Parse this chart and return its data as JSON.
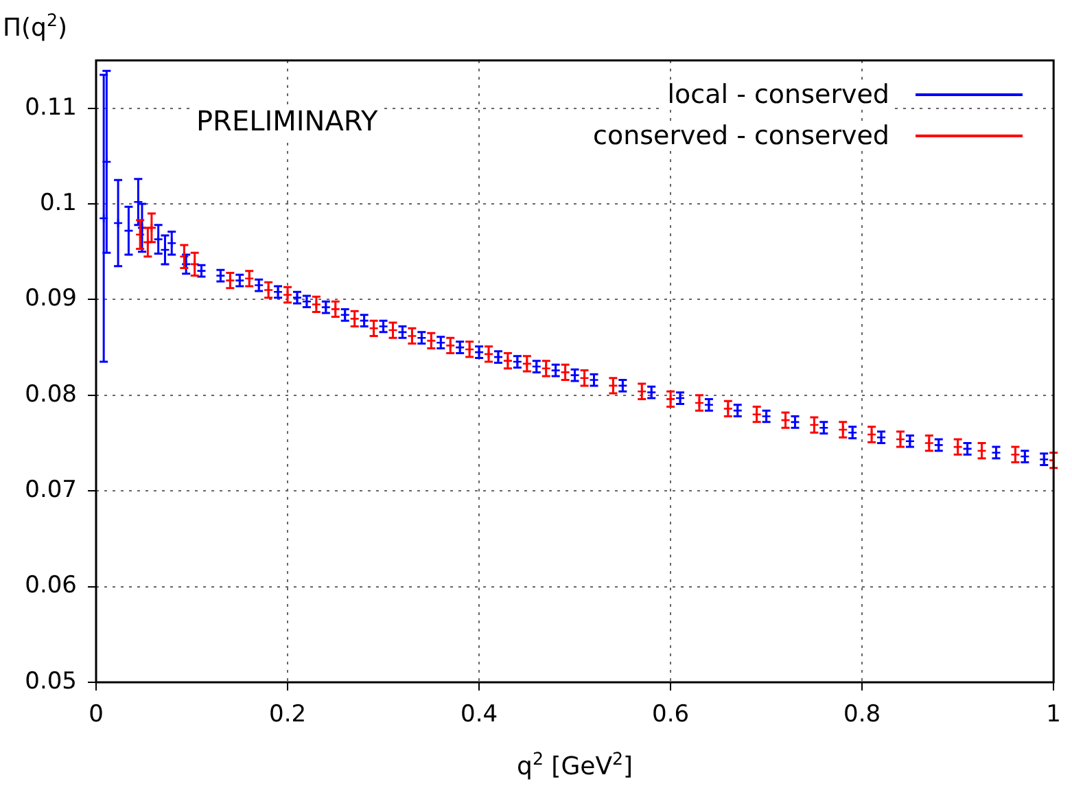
{
  "chart_data": {
    "type": "scatter",
    "xlabel": "q$^{2}$ [GeV$^{2}$]",
    "ylabel": "Π(q$^{2}$)",
    "annotations": [
      "PRELIMINARY"
    ],
    "xlim": [
      0,
      1
    ],
    "xticks": [
      0,
      0.2,
      0.4,
      0.6,
      0.8,
      1
    ],
    "ylim": [
      0.05,
      0.115
    ],
    "yticks": [
      0.05,
      0.06,
      0.07,
      0.08,
      0.09,
      0.1,
      0.11
    ],
    "grid": true,
    "legend": "top right",
    "marker": "cross",
    "series": [
      {
        "name": "local - conserved",
        "color": "#0000ff",
        "x": [
          0.008,
          0.011,
          0.023,
          0.034,
          0.044,
          0.048,
          0.065,
          0.072,
          0.079,
          0.094,
          0.11,
          0.13,
          0.15,
          0.17,
          0.19,
          0.21,
          0.22,
          0.24,
          0.26,
          0.28,
          0.3,
          0.32,
          0.34,
          0.36,
          0.38,
          0.4,
          0.42,
          0.44,
          0.46,
          0.48,
          0.5,
          0.52,
          0.55,
          0.58,
          0.61,
          0.64,
          0.67,
          0.7,
          0.73,
          0.76,
          0.79,
          0.82,
          0.85,
          0.88,
          0.91,
          0.94,
          0.97,
          0.99
        ],
        "values": [
          0.0985,
          0.1044,
          0.098,
          0.0972,
          0.1002,
          0.0975,
          0.0963,
          0.0952,
          0.0959,
          0.0937,
          0.093,
          0.0925,
          0.092,
          0.0915,
          0.0908,
          0.0902,
          0.0898,
          0.0892,
          0.0884,
          0.0878,
          0.0872,
          0.0866,
          0.086,
          0.0855,
          0.085,
          0.0845,
          0.084,
          0.0835,
          0.083,
          0.0826,
          0.0821,
          0.0816,
          0.081,
          0.0803,
          0.0797,
          0.079,
          0.0784,
          0.0778,
          0.0772,
          0.0766,
          0.0761,
          0.0756,
          0.0752,
          0.0748,
          0.0744,
          0.074,
          0.0736,
          0.0733
        ],
        "errors": [
          0.015,
          0.0095,
          0.0045,
          0.0025,
          0.0024,
          0.0025,
          0.0015,
          0.0015,
          0.0012,
          0.001,
          0.0006,
          0.0006,
          0.0006,
          0.0006,
          0.0006,
          0.0006,
          0.0006,
          0.0006,
          0.0006,
          0.0006,
          0.0006,
          0.0006,
          0.0006,
          0.0006,
          0.0006,
          0.0006,
          0.0006,
          0.0006,
          0.0006,
          0.0006,
          0.0006,
          0.0006,
          0.0006,
          0.0006,
          0.0006,
          0.0006,
          0.0006,
          0.0006,
          0.0006,
          0.0006,
          0.0006,
          0.0006,
          0.0006,
          0.0006,
          0.0006,
          0.0006,
          0.0006,
          0.0006
        ]
      },
      {
        "name": "conserved - conserved",
        "color": "#ff0000",
        "x": [
          0.046,
          0.058,
          0.054,
          0.092,
          0.103,
          0.14,
          0.16,
          0.18,
          0.2,
          0.23,
          0.25,
          0.27,
          0.29,
          0.31,
          0.33,
          0.35,
          0.37,
          0.39,
          0.41,
          0.43,
          0.45,
          0.47,
          0.49,
          0.51,
          0.54,
          0.57,
          0.6,
          0.63,
          0.66,
          0.69,
          0.72,
          0.75,
          0.78,
          0.81,
          0.84,
          0.87,
          0.9,
          0.925,
          0.96,
          1.0
        ],
        "values": [
          0.0968,
          0.0975,
          0.096,
          0.0945,
          0.0937,
          0.092,
          0.0922,
          0.091,
          0.0905,
          0.0895,
          0.089,
          0.088,
          0.087,
          0.0868,
          0.0862,
          0.0857,
          0.0852,
          0.0848,
          0.0843,
          0.0836,
          0.0833,
          0.0828,
          0.0824,
          0.0818,
          0.081,
          0.0804,
          0.0796,
          0.0792,
          0.0786,
          0.078,
          0.0774,
          0.0769,
          0.0764,
          0.0759,
          0.0754,
          0.075,
          0.0746,
          0.0742,
          0.0738,
          0.0732
        ],
        "errors": [
          0.0015,
          0.0015,
          0.0015,
          0.0012,
          0.0012,
          0.0008,
          0.0008,
          0.0008,
          0.0008,
          0.0008,
          0.0008,
          0.0008,
          0.0008,
          0.0008,
          0.0008,
          0.0008,
          0.0008,
          0.0008,
          0.0008,
          0.0008,
          0.0008,
          0.0008,
          0.0008,
          0.0008,
          0.0008,
          0.0008,
          0.0008,
          0.0008,
          0.0008,
          0.0008,
          0.0008,
          0.0008,
          0.0008,
          0.0008,
          0.0008,
          0.0008,
          0.0008,
          0.0008,
          0.0008,
          0.0008
        ]
      }
    ]
  }
}
